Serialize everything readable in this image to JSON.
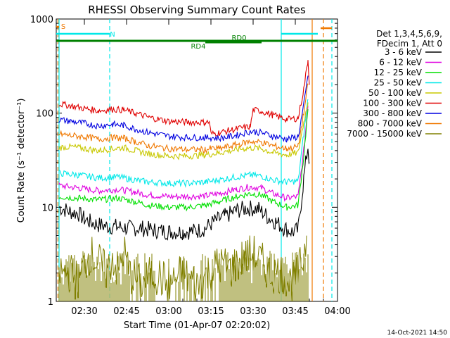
{
  "chart_data": {
    "type": "line",
    "title": "RHESSI Observing Summary Count Rates",
    "xlabel": "Start Time (01-Apr-07 02:20:02)",
    "ylabel": "Count Rate (s⁻¹ detector⁻¹)",
    "yscale": "log",
    "ylim": [
      1,
      1000
    ],
    "xlim_minutes": [
      0,
      100
    ],
    "x_ticks": [
      {
        "minute": 10,
        "label": "02:30"
      },
      {
        "minute": 25,
        "label": "02:45"
      },
      {
        "minute": 40,
        "label": "03:00"
      },
      {
        "minute": 55,
        "label": "03:15"
      },
      {
        "minute": 70,
        "label": "03:30"
      },
      {
        "minute": 85,
        "label": "03:45"
      },
      {
        "minute": 100,
        "label": "04:00"
      }
    ],
    "y_ticks": [
      {
        "value": 1,
        "label": "1"
      },
      {
        "value": 10,
        "label": "10"
      },
      {
        "value": 100,
        "label": "100"
      },
      {
        "value": 1000,
        "label": "1000"
      }
    ],
    "legend_header": [
      "Det 1,3,4,5,6,9,",
      "FDecim 1, Att 0"
    ],
    "legend_position": "right",
    "series": [
      {
        "name": "3 - 6 keV",
        "color": "#000000",
        "points": [
          [
            1,
            10
          ],
          [
            5,
            9
          ],
          [
            8,
            8.5
          ],
          [
            10,
            7.5
          ],
          [
            12,
            7
          ],
          [
            15,
            6.5
          ],
          [
            18,
            6.3
          ],
          [
            22,
            6.2
          ],
          [
            26,
            6
          ],
          [
            30,
            6
          ],
          [
            35,
            5.7
          ],
          [
            40,
            5.5
          ],
          [
            45,
            5.5
          ],
          [
            50,
            5.6
          ],
          [
            53,
            6
          ],
          [
            56,
            7
          ],
          [
            60,
            8
          ],
          [
            64,
            9.2
          ],
          [
            68,
            9.8
          ],
          [
            72,
            9.6
          ],
          [
            75,
            8
          ],
          [
            78,
            7
          ],
          [
            81,
            6
          ],
          [
            84,
            5.5
          ],
          [
            86,
            5.7
          ],
          [
            88,
            20
          ],
          [
            89.5,
            45
          ],
          [
            90,
            30
          ]
        ]
      },
      {
        "name": "6 - 12 keV",
        "color": "#e000e0",
        "points": [
          [
            1,
            17
          ],
          [
            8,
            16
          ],
          [
            15,
            15
          ],
          [
            22,
            15.5
          ],
          [
            28,
            14.5
          ],
          [
            33,
            13.5
          ],
          [
            40,
            13
          ],
          [
            47,
            13
          ],
          [
            53,
            13.2
          ],
          [
            58,
            14
          ],
          [
            64,
            15.5
          ],
          [
            69,
            16.5
          ],
          [
            73,
            16
          ],
          [
            77,
            14
          ],
          [
            82,
            12.5
          ],
          [
            86,
            13
          ],
          [
            88,
            40
          ],
          [
            89.5,
            120
          ]
        ]
      },
      {
        "name": "12 - 25 keV",
        "color": "#00e000",
        "points": [
          [
            1,
            13
          ],
          [
            8,
            12.5
          ],
          [
            15,
            12
          ],
          [
            22,
            12.5
          ],
          [
            28,
            11.5
          ],
          [
            33,
            10.5
          ],
          [
            40,
            10
          ],
          [
            47,
            10
          ],
          [
            53,
            10.5
          ],
          [
            58,
            11.5
          ],
          [
            64,
            13
          ],
          [
            69,
            14
          ],
          [
            73,
            13.5
          ],
          [
            77,
            11.5
          ],
          [
            82,
            10
          ],
          [
            86,
            10.5
          ],
          [
            88,
            35
          ],
          [
            89.5,
            110
          ]
        ]
      },
      {
        "name": "25 - 50 keV",
        "color": "#00e8e8",
        "points": [
          [
            1,
            23
          ],
          [
            8,
            22
          ],
          [
            15,
            20.5
          ],
          [
            22,
            21
          ],
          [
            28,
            19.5
          ],
          [
            33,
            18.5
          ],
          [
            40,
            18
          ],
          [
            47,
            18
          ],
          [
            53,
            18.5
          ],
          [
            58,
            19.5
          ],
          [
            64,
            21
          ],
          [
            69,
            22
          ],
          [
            73,
            21.5
          ],
          [
            77,
            19.5
          ],
          [
            82,
            18.5
          ],
          [
            86,
            19
          ],
          [
            88,
            60
          ],
          [
            89.5,
            140
          ]
        ]
      },
      {
        "name": "50 - 100 keV",
        "color": "#c8c800",
        "points": [
          [
            1,
            43
          ],
          [
            5,
            44
          ],
          [
            10,
            42
          ],
          [
            15,
            40
          ],
          [
            20,
            42
          ],
          [
            24,
            43
          ],
          [
            28,
            40
          ],
          [
            33,
            37
          ],
          [
            40,
            35
          ],
          [
            47,
            35
          ],
          [
            53,
            36
          ],
          [
            58,
            38
          ],
          [
            64,
            41
          ],
          [
            69,
            43
          ],
          [
            73,
            42
          ],
          [
            77,
            38
          ],
          [
            82,
            36
          ],
          [
            86,
            38
          ],
          [
            88,
            80
          ],
          [
            89.5,
            130
          ]
        ]
      },
      {
        "name": "100 - 300 keV",
        "color": "#e00000",
        "points": [
          [
            1,
            125
          ],
          [
            5,
            120
          ],
          [
            10,
            112
          ],
          [
            15,
            106
          ],
          [
            20,
            110
          ],
          [
            24,
            108
          ],
          [
            28,
            100
          ],
          [
            33,
            90
          ],
          [
            40,
            82
          ],
          [
            47,
            80
          ],
          [
            53,
            80
          ],
          [
            54.5,
            80
          ],
          [
            55,
            60
          ],
          [
            58,
            62
          ],
          [
            64,
            68
          ],
          [
            69,
            72
          ],
          [
            70,
            108
          ],
          [
            73,
            105
          ],
          [
            77,
            95
          ],
          [
            82,
            86
          ],
          [
            86,
            88
          ],
          [
            88,
            180
          ],
          [
            89.5,
            370
          ],
          [
            90,
            200
          ]
        ]
      },
      {
        "name": "300 - 800 keV",
        "color": "#0000e0",
        "points": [
          [
            1,
            85
          ],
          [
            5,
            82
          ],
          [
            10,
            78
          ],
          [
            15,
            73
          ],
          [
            20,
            76
          ],
          [
            24,
            74
          ],
          [
            28,
            68
          ],
          [
            33,
            62
          ],
          [
            40,
            57
          ],
          [
            47,
            55
          ],
          [
            53,
            55
          ],
          [
            55,
            55
          ],
          [
            58,
            54
          ],
          [
            64,
            58
          ],
          [
            69,
            64
          ],
          [
            73,
            62
          ],
          [
            77,
            57
          ],
          [
            82,
            53
          ],
          [
            86,
            56
          ],
          [
            88,
            120
          ],
          [
            89.5,
            250
          ]
        ]
      },
      {
        "name": "800 - 7000 keV",
        "color": "#f07800",
        "points": [
          [
            1,
            60
          ],
          [
            5,
            58
          ],
          [
            10,
            56
          ],
          [
            15,
            53
          ],
          [
            20,
            55
          ],
          [
            24,
            54
          ],
          [
            28,
            50
          ],
          [
            33,
            45
          ],
          [
            40,
            42
          ],
          [
            47,
            41
          ],
          [
            53,
            41
          ],
          [
            55,
            42
          ],
          [
            58,
            42
          ],
          [
            64,
            46
          ],
          [
            69,
            50
          ],
          [
            73,
            49
          ],
          [
            77,
            45
          ],
          [
            82,
            42
          ],
          [
            86,
            44
          ],
          [
            88,
            100
          ],
          [
            89.5,
            200
          ]
        ]
      },
      {
        "name": "7000 - 15000 keV",
        "color": "#808000",
        "points": [
          [
            1,
            2
          ],
          [
            5,
            2
          ],
          [
            8,
            1.6
          ],
          [
            10,
            2.5
          ],
          [
            12,
            3.2
          ],
          [
            15,
            2.6
          ],
          [
            18,
            2
          ],
          [
            20,
            3
          ],
          [
            22,
            2
          ],
          [
            24,
            3.5
          ],
          [
            26,
            2
          ],
          [
            30,
            1.5
          ],
          [
            35,
            2
          ],
          [
            40,
            1.5
          ],
          [
            45,
            2
          ],
          [
            50,
            1.5
          ],
          [
            54,
            2
          ],
          [
            58,
            2.5
          ],
          [
            62,
            2.2
          ],
          [
            66,
            2.8
          ],
          [
            70,
            3.2
          ],
          [
            73,
            2.6
          ],
          [
            76,
            2
          ],
          [
            80,
            2
          ],
          [
            84,
            1.5
          ],
          [
            86,
            2
          ],
          [
            88,
            3
          ],
          [
            89,
            5
          ]
        ]
      }
    ],
    "annotations": {
      "flag_lines": [
        {
          "label": "S",
          "color": "#f07800",
          "start_min": 0,
          "end_min": 1
        },
        {
          "label": "N",
          "color": "#00e8e8",
          "start_min": 0,
          "end_min": 19
        },
        {
          "label": "",
          "color": "#00e8e8",
          "start_min": 80,
          "end_min": 93
        },
        {
          "label": "",
          "color": "#f07800",
          "start_min": 94,
          "end_min": 98
        },
        {
          "label": "RD0",
          "color": "#008000",
          "start_min": 0,
          "end_min": 100
        },
        {
          "label": "RD4",
          "color": "#008000",
          "start_min": 53,
          "end_min": 73
        }
      ],
      "vertical_lines": [
        {
          "minute": 1,
          "color": "#00e8e8",
          "style": "solid"
        },
        {
          "minute": 0.6,
          "color": "#f07800",
          "style": "dashed"
        },
        {
          "minute": 19,
          "color": "#00e8e8",
          "style": "dashed"
        },
        {
          "minute": 80,
          "color": "#00e8e8",
          "style": "solid"
        },
        {
          "minute": 91,
          "color": "#f07800",
          "style": "solid"
        },
        {
          "minute": 95,
          "color": "#f07800",
          "style": "dashed"
        },
        {
          "minute": 98,
          "color": "#00e8e8",
          "style": "dashed"
        }
      ]
    }
  },
  "footer": {
    "timestamp": "14-Oct-2021 14:50"
  }
}
